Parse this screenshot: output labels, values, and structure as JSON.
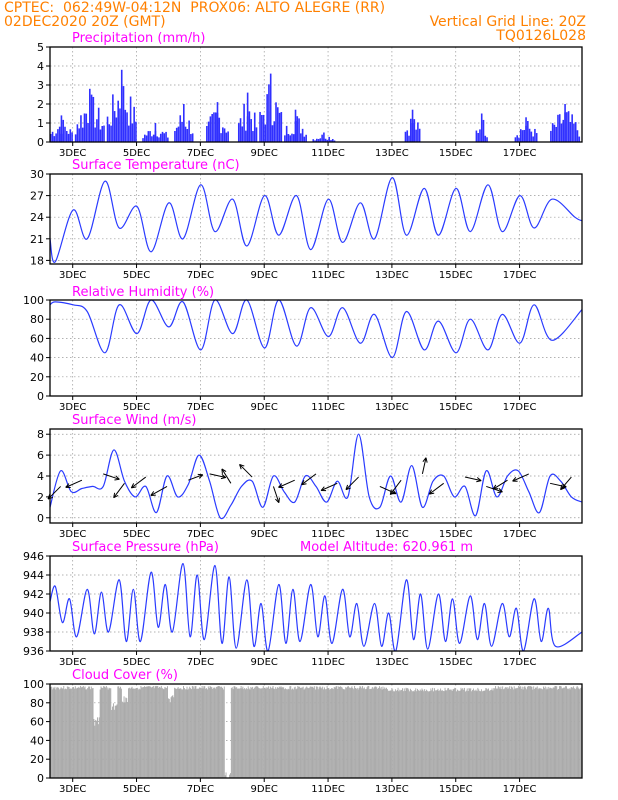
{
  "header": {
    "line1_left": "CPTEC:  062:49W-04:12N  PROX06: ALTO ALEGRE (RR)",
    "line2_left": "02DEC2020 20Z (GMT)",
    "line2_right": "Vertical Grid Line: 20Z",
    "line3_right": "TQ0126L028"
  },
  "colors": {
    "header": "#ff8000",
    "title": "#ff00ff",
    "line": "#2a3bff",
    "bar": "#3030ff",
    "cloud": "#aaaaaa",
    "grid": "#999999"
  },
  "chart_data": [
    {
      "type": "bar",
      "title": "Precipitation (mm/h)",
      "x_ticks": [
        "3DEC",
        "5DEC",
        "7DEC",
        "9DEC",
        "11DEC",
        "13DEC",
        "15DEC",
        "17DEC"
      ],
      "x_range_hours": [
        0,
        150
      ],
      "y_ticks": [
        0,
        1,
        2,
        3,
        4,
        5
      ],
      "ylim": [
        0,
        5
      ],
      "grid": true,
      "bursts": [
        {
          "start": 0,
          "end": 6,
          "peak": 1.4
        },
        {
          "start": 7,
          "end": 15,
          "peak": 2.8
        },
        {
          "start": 16,
          "end": 24,
          "peak": 3.8
        },
        {
          "start": 26,
          "end": 33,
          "peak": 1.0
        },
        {
          "start": 35,
          "end": 40,
          "peak": 2.0
        },
        {
          "start": 44,
          "end": 50,
          "peak": 2.1
        },
        {
          "start": 53,
          "end": 58,
          "peak": 2.6
        },
        {
          "start": 59,
          "end": 65,
          "peak": 3.6
        },
        {
          "start": 66,
          "end": 72,
          "peak": 1.7
        },
        {
          "start": 74,
          "end": 80,
          "peak": 0.5
        },
        {
          "start": 100,
          "end": 104,
          "peak": 1.7
        },
        {
          "start": 120,
          "end": 123,
          "peak": 1.5
        },
        {
          "start": 131,
          "end": 137,
          "peak": 1.3
        },
        {
          "start": 141,
          "end": 149,
          "peak": 2.0
        }
      ]
    },
    {
      "type": "line",
      "title": "Surface Temperature (nC)",
      "x_ticks": [
        "3DEC",
        "5DEC",
        "7DEC",
        "9DEC",
        "11DEC",
        "13DEC",
        "15DEC",
        "17DEC"
      ],
      "y_ticks": [
        18,
        21,
        24,
        27,
        30
      ],
      "ylim": [
        17.5,
        30
      ],
      "grid": true,
      "maxima": [
        25,
        29,
        25.5,
        26,
        28.5,
        26.5,
        27,
        27,
        26.5,
        26,
        29.5,
        28,
        28,
        28.5,
        27,
        26.5
      ],
      "minima": [
        17.8,
        21,
        22.5,
        19.2,
        21,
        22,
        20,
        21.5,
        19.5,
        20.5,
        21,
        21.5,
        21.5,
        22,
        22,
        22.5
      ],
      "final": 23.5
    },
    {
      "type": "line",
      "title": "Relative Humidity (%)",
      "x_ticks": [
        "3DEC",
        "5DEC",
        "7DEC",
        "9DEC",
        "11DEC",
        "13DEC",
        "15DEC",
        "17DEC"
      ],
      "y_ticks": [
        0,
        20,
        40,
        60,
        80,
        100
      ],
      "ylim": [
        0,
        100
      ],
      "grid": true,
      "minima": [
        95,
        45,
        65,
        72,
        48,
        65,
        50,
        52,
        62,
        55,
        40,
        48,
        45,
        48,
        55,
        58
      ],
      "maxima": [
        98,
        88,
        95,
        100,
        98,
        100,
        100,
        100,
        92,
        92,
        85,
        88,
        78,
        80,
        85,
        95
      ],
      "final": 90
    },
    {
      "type": "line",
      "title": "Surface Wind (m/s)",
      "x_ticks": [
        "3DEC",
        "5DEC",
        "7DEC",
        "9DEC",
        "11DEC",
        "13DEC",
        "15DEC",
        "17DEC"
      ],
      "y_ticks": [
        0,
        2,
        4,
        6,
        8
      ],
      "ylim": [
        -0.5,
        8.5
      ],
      "grid": true,
      "speed_points": [
        [
          0,
          1
        ],
        [
          3,
          4.5
        ],
        [
          6,
          2.5
        ],
        [
          9,
          2.8
        ],
        [
          12,
          3
        ],
        [
          15,
          3
        ],
        [
          18,
          6.5
        ],
        [
          21,
          3.5
        ],
        [
          24,
          2
        ],
        [
          27,
          3
        ],
        [
          30,
          0.5
        ],
        [
          33,
          4
        ],
        [
          36,
          2
        ],
        [
          39,
          3.2
        ],
        [
          42,
          6
        ],
        [
          45,
          3.5
        ],
        [
          48,
          0
        ],
        [
          51,
          1.2
        ],
        [
          54,
          3
        ],
        [
          57,
          3.5
        ],
        [
          60,
          1
        ],
        [
          63,
          4
        ],
        [
          66,
          2.5
        ],
        [
          69,
          1.5
        ],
        [
          72,
          4
        ],
        [
          75,
          3
        ],
        [
          78,
          1.5
        ],
        [
          81,
          3.5
        ],
        [
          84,
          2
        ],
        [
          87,
          8
        ],
        [
          90,
          2
        ],
        [
          93,
          1
        ],
        [
          96,
          4
        ],
        [
          99,
          1.5
        ],
        [
          102,
          5
        ],
        [
          105,
          1
        ],
        [
          108,
          3.5
        ],
        [
          111,
          4
        ],
        [
          114,
          2
        ],
        [
          117,
          3
        ],
        [
          120,
          0.2
        ],
        [
          123,
          4.5
        ],
        [
          126,
          2
        ],
        [
          129,
          4
        ],
        [
          132,
          4.5
        ],
        [
          135,
          2.5
        ],
        [
          138,
          0.5
        ],
        [
          141,
          4
        ],
        [
          144,
          3.5
        ],
        [
          147,
          2
        ],
        [
          150,
          1.5
        ]
      ],
      "vector_count": 25
    },
    {
      "type": "line",
      "title": "Surface Pressure (hPa)",
      "annotation": "Model Altitude: 620.961  m",
      "x_ticks": [
        "3DEC",
        "5DEC",
        "7DEC",
        "9DEC",
        "11DEC",
        "13DEC",
        "15DEC",
        "17DEC"
      ],
      "y_ticks": [
        936,
        938,
        940,
        942,
        944,
        946
      ],
      "ylim": [
        936,
        946
      ],
      "grid": true,
      "daily": [
        {
          "a": 942.8,
          "b": 939.0,
          "c": 941.5,
          "d": 937.5
        },
        {
          "a": 942.5,
          "b": 937.8,
          "c": 942.2,
          "d": 938.0
        },
        {
          "a": 943.5,
          "b": 937.0,
          "c": 942.5,
          "d": 937.0
        },
        {
          "a": 944.3,
          "b": 938.5,
          "c": 943.0,
          "d": 938.0
        },
        {
          "a": 945.2,
          "b": 937.5,
          "c": 944.0,
          "d": 937.2
        },
        {
          "a": 945.0,
          "b": 936.8,
          "c": 943.8,
          "d": 936.3
        },
        {
          "a": 943.5,
          "b": 936.5,
          "c": 941.0,
          "d": 935.8
        },
        {
          "a": 943.0,
          "b": 936.8,
          "c": 942.5,
          "d": 937.0
        },
        {
          "a": 943.0,
          "b": 937.5,
          "c": 941.8,
          "d": 936.8
        },
        {
          "a": 942.5,
          "b": 937.5,
          "c": 941.0,
          "d": 936.5
        },
        {
          "a": 941.0,
          "b": 936.5,
          "c": 940.0,
          "d": 935.8
        },
        {
          "a": 943.5,
          "b": 937.2,
          "c": 942.0,
          "d": 936.2
        },
        {
          "a": 942.0,
          "b": 937.0,
          "c": 941.5,
          "d": 936.8
        },
        {
          "a": 941.8,
          "b": 937.2,
          "c": 941.0,
          "d": 936.5
        },
        {
          "a": 941.0,
          "b": 937.5,
          "c": 940.5,
          "d": 936.0
        },
        {
          "a": 941.5,
          "b": 937.0,
          "c": 940.5,
          "d": 936.5
        }
      ],
      "start": 941.2,
      "final": 938.0
    },
    {
      "type": "area",
      "title": "Cloud Cover (%)",
      "x_ticks": [
        "3DEC",
        "5DEC",
        "7DEC",
        "9DEC",
        "11DEC",
        "13DEC",
        "15DEC",
        "17DEC"
      ],
      "y_ticks": [
        0,
        20,
        40,
        60,
        80,
        100
      ],
      "ylim": [
        0,
        100
      ],
      "grid": true,
      "baseline": 95,
      "dips": [
        {
          "at": 13,
          "value": 55
        },
        {
          "at": 18,
          "value": 70
        },
        {
          "at": 21,
          "value": 78
        },
        {
          "at": 34,
          "value": 80
        },
        {
          "at": 50,
          "value": 0
        }
      ],
      "fill": "#aaaaaa"
    }
  ]
}
